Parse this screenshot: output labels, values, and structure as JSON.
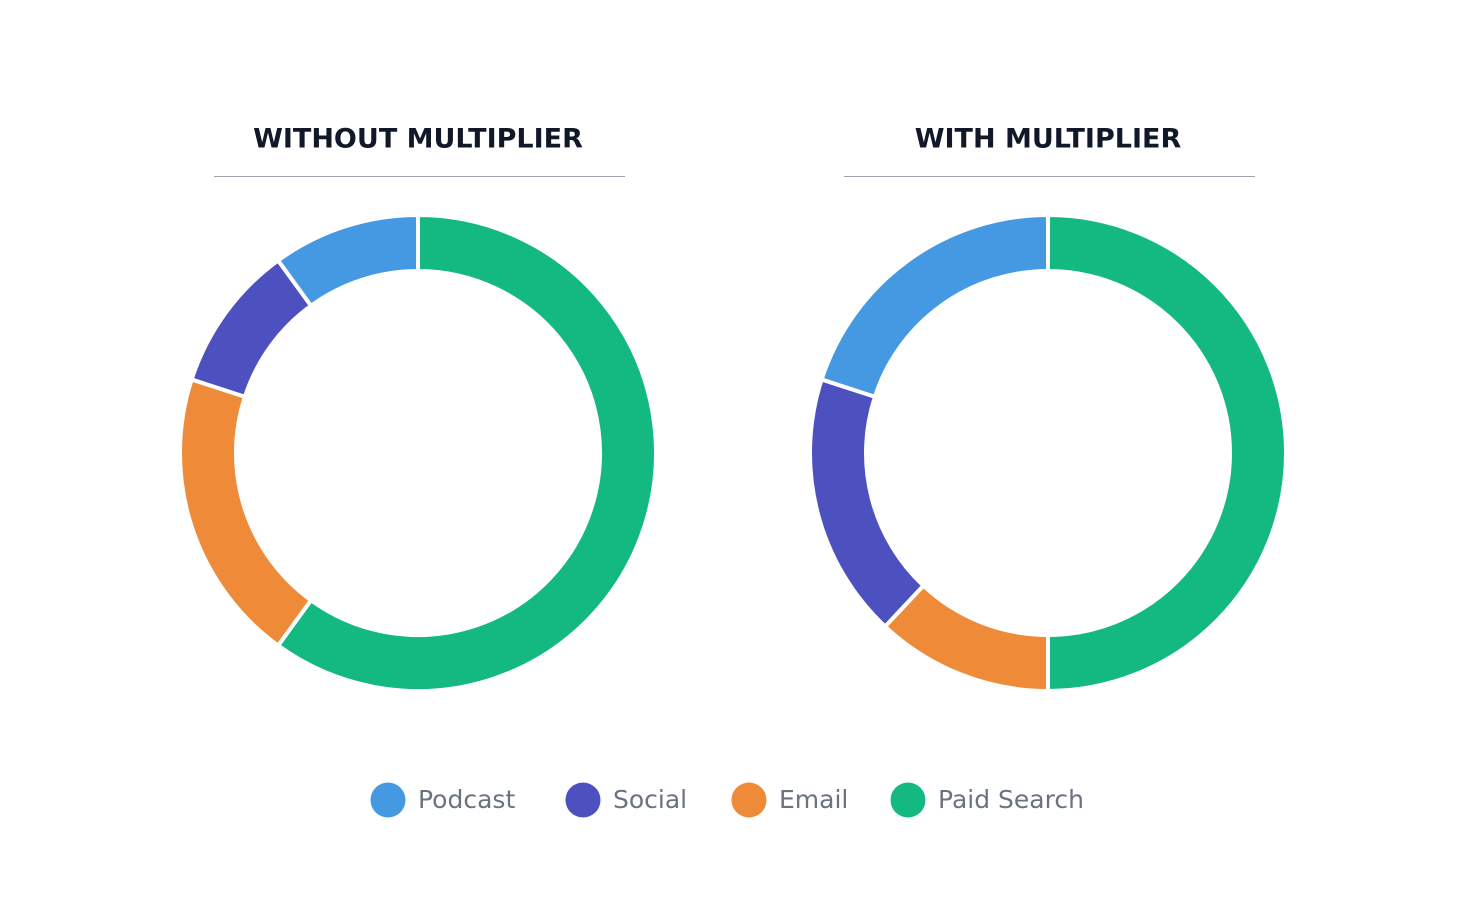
{
  "chart_data": [
    {
      "type": "donut",
      "title": "WITHOUT MULTIPLIER",
      "categories": [
        "Podcast",
        "Social",
        "Email",
        "Paid Search"
      ],
      "values": [
        10,
        10,
        20,
        60
      ],
      "colors": [
        "#4599e3",
        "#4d51c0",
        "#ee8a38",
        "#13b981"
      ]
    },
    {
      "type": "donut",
      "title": "WITH MULTIPLIER",
      "categories": [
        "Podcast",
        "Social",
        "Email",
        "Paid Search"
      ],
      "values": [
        20,
        18,
        12,
        50
      ],
      "colors": [
        "#4599e3",
        "#4d51c0",
        "#ee8a38",
        "#13b981"
      ]
    }
  ]
}
